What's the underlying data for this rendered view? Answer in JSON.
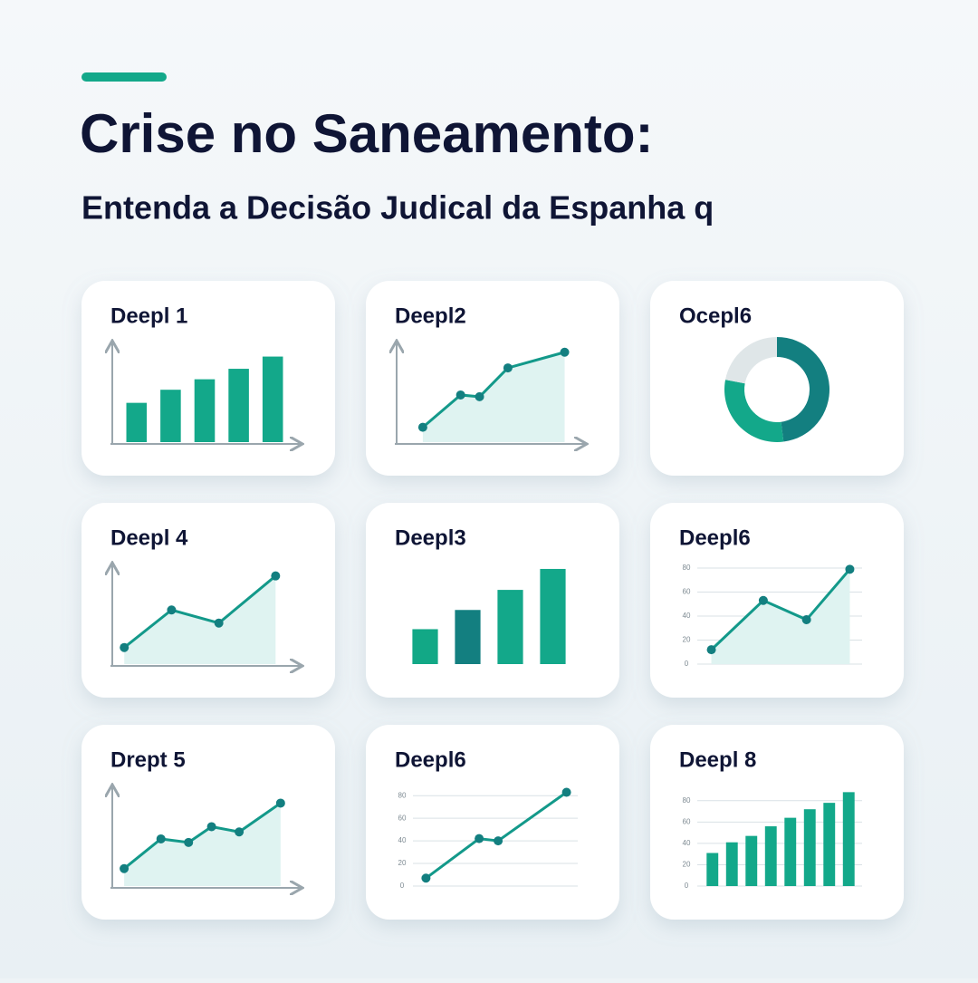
{
  "header": {
    "title": "Crise no Saneamento:",
    "subtitle": "Entenda a Decisão Judical da Espanha q"
  },
  "chart_data": [
    {
      "type": "bar",
      "title": "Deepl 1",
      "values": [
        45,
        60,
        72,
        84,
        98
      ],
      "ylim": [
        0,
        110
      ],
      "color": "#13a88a",
      "axes": true
    },
    {
      "type": "line",
      "title": "Deepl2",
      "x": [
        1,
        3,
        4,
        5.5,
        8.5
      ],
      "xlim": [
        0,
        9
      ],
      "values": [
        17,
        54,
        52,
        85,
        103
      ],
      "ylim": [
        0,
        110
      ],
      "color": "#13998a",
      "fill": true,
      "axes": true
    },
    {
      "type": "pie",
      "title": "Ocepl6",
      "values": [
        48,
        30,
        22
      ],
      "colors": [
        "#137f80",
        "#13a88a",
        "#dfe6e8"
      ]
    },
    {
      "type": "line",
      "title": "Deepl 4",
      "x": [
        0,
        1,
        2,
        3.2
      ],
      "xlim": [
        -0.1,
        3.5
      ],
      "values": [
        19,
        62,
        47,
        101
      ],
      "ylim": [
        0,
        110
      ],
      "color": "#13998a",
      "fill": true,
      "axes": true
    },
    {
      "type": "bar",
      "title": "Deepl3",
      "values": [
        40,
        62,
        85,
        109
      ],
      "ylim": [
        0,
        110
      ],
      "colors": [
        "#12a886",
        "#137f80",
        "#13a88a",
        "#13a88a"
      ],
      "axes": false
    },
    {
      "type": "line",
      "title": "Deepl6",
      "x": [
        0,
        1.2,
        2.2,
        3.2
      ],
      "xlim": [
        -0.2,
        3.4
      ],
      "values": [
        12,
        53,
        37,
        79
      ],
      "ylim": [
        0,
        80
      ],
      "yticks": [
        0,
        20,
        40,
        60,
        80
      ],
      "color": "#13998a",
      "fill": true,
      "axes": false
    },
    {
      "type": "line",
      "title": "Drept 5",
      "x": [
        0,
        0.8,
        1.4,
        1.9,
        2.5,
        3.4
      ],
      "xlim": [
        -0.1,
        3.6
      ],
      "values": [
        20,
        54,
        50,
        68,
        62,
        95
      ],
      "ylim": [
        0,
        110
      ],
      "color": "#13998a",
      "fill": true,
      "axes": true
    },
    {
      "type": "line",
      "title": "Deepl6",
      "x": [
        0,
        1.4,
        1.9,
        3.7
      ],
      "xlim": [
        -0.2,
        3.9
      ],
      "values": [
        7,
        42,
        40,
        83
      ],
      "ylim": [
        0,
        85
      ],
      "yticks": [
        0,
        20,
        40,
        60,
        80
      ],
      "color": "#13998a",
      "fill": false,
      "axes": false
    },
    {
      "type": "bar",
      "title": "Deepl 8",
      "values": [
        31,
        41,
        47,
        56,
        64,
        72,
        78,
        88
      ],
      "ylim": [
        0,
        90
      ],
      "yticks": [
        0,
        20,
        40,
        60,
        80
      ],
      "color": "#13a88a",
      "axes": false
    }
  ]
}
